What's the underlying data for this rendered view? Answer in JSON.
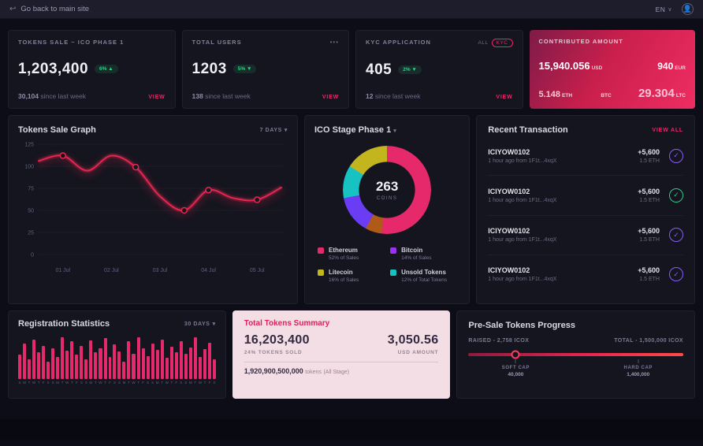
{
  "icons": {
    "back": "↩",
    "caret": "▾",
    "dots": "•••",
    "check": "✓",
    "user": "👤",
    "lang_caret": "∨"
  },
  "colors": {
    "accent_pink": "#e6296b",
    "line_red": "#e6264f",
    "badge_green": "#2dd284",
    "purple": "#8a5cf6",
    "teal": "#17c2c2"
  },
  "topbar": {
    "back_label": "Go back to main site",
    "lang": "EN"
  },
  "stat_cards": [
    {
      "title": "TOKENS SALE ~ ICO PHASE 1",
      "value": "1,203,400",
      "badge": "6% ▲",
      "sub_value": "30,104",
      "sub_label": "since last week",
      "link": "VIEW"
    },
    {
      "title": "TOTAL USERS",
      "value": "1203",
      "badge": "5% ▼",
      "sub_value": "138",
      "sub_label": "since last week",
      "link": "VIEW"
    },
    {
      "title": "KYC APPLICATION",
      "value": "405",
      "badge": "2% ▼",
      "sub_value": "12",
      "sub_label": "since last week",
      "link": "VIEW",
      "toggles": [
        "ALL",
        "KYC"
      ]
    }
  ],
  "contrib": {
    "title": "CONTRIBUTED AMOUNT",
    "usd_value": "15,940.056",
    "usd_unit": "USD",
    "eur_value": "940",
    "eur_unit": "EUR",
    "eth_value": "5.148",
    "eth_unit": "ETH",
    "btc_value": "",
    "btc_unit": "BTC",
    "ltc_value": "29.304",
    "ltc_unit": "LTC"
  },
  "tokens_sale_graph": {
    "title": "Tokens Sale Graph",
    "range": "7 DAYS",
    "chart_data": {
      "type": "line",
      "x_labels": [
        "01 Jul",
        "02 Jul",
        "03 Jul",
        "04 Jul",
        "05 Jul"
      ],
      "values": [
        106,
        112,
        95,
        112,
        99,
        66,
        50,
        73,
        64,
        62,
        76
      ],
      "marker_indices": [
        1,
        4,
        6,
        7,
        9
      ],
      "ylim": [
        0,
        125
      ],
      "yticks": [
        0,
        25,
        50,
        75,
        100,
        125
      ],
      "line_color": "#e6264f",
      "grid": false,
      "title": "Tokens Sale Graph"
    }
  },
  "ico_stage": {
    "title": "ICO Stage Phase 1",
    "center_value": "263",
    "center_label": "COINS",
    "legend": [
      {
        "name": "Ethereum",
        "sub": "52% of Sales",
        "color": "#e6296b"
      },
      {
        "name": "Bitcoin",
        "sub": "14% of Sales",
        "color": "#9b2ff2"
      },
      {
        "name": "Litecoin",
        "sub": "16% of Sales",
        "color": "#c2b51e"
      },
      {
        "name": "Unsold Tokens",
        "sub": "12% of Total Tokens",
        "color": "#17c2c2"
      }
    ],
    "chart_data": {
      "type": "pie",
      "title": "ICO Stage Phase 1",
      "center_value": 263,
      "segments": [
        {
          "label": "Ethereum",
          "pct": 52,
          "color": "#e6296b"
        },
        {
          "label": "unlabeled",
          "pct": 6,
          "color": "#b05a1a"
        },
        {
          "label": "Bitcoin",
          "pct": 14,
          "color": "#6a3df5"
        },
        {
          "label": "Unsold Tokens",
          "pct": 12,
          "color": "#17c2c2"
        },
        {
          "label": "Litecoin",
          "pct": 16,
          "color": "#c2b51e"
        }
      ]
    }
  },
  "transactions": {
    "title": "Recent Transaction",
    "link": "VIEW ALL",
    "items": [
      {
        "id": "ICIYOW0102",
        "meta": "1 hour ago from 1F1t...4xqX",
        "amount": "+5,600",
        "eth": "1.5 ETH",
        "icon_color": "#8a5cf6"
      },
      {
        "id": "ICIYOW0102",
        "meta": "1 hour ago from 1F1t...4xqX",
        "amount": "+5,600",
        "eth": "1.5 ETH",
        "icon_color": "#2fc98e"
      },
      {
        "id": "ICIYOW0102",
        "meta": "1 hour ago from 1F1t...4xqX",
        "amount": "+5,600",
        "eth": "1.5 ETH",
        "icon_color": "#8a5cf6"
      },
      {
        "id": "ICIYOW0102",
        "meta": "1 hour ago from 1F1t...4xqX",
        "amount": "+5,600",
        "eth": "1.5 ETH",
        "icon_color": "#8a5cf6"
      }
    ]
  },
  "registration": {
    "title": "Registration Statistics",
    "range": "30 DAYS",
    "chart_data": {
      "type": "bar",
      "title": "Registration Statistics",
      "bar_color": "#e6296b",
      "values": [
        55,
        80,
        45,
        90,
        60,
        75,
        40,
        70,
        50,
        95,
        65,
        85,
        55,
        75,
        45,
        88,
        60,
        70,
        92,
        50,
        78,
        62,
        40,
        85,
        58,
        95,
        70,
        52,
        80,
        66,
        90,
        48,
        74,
        60,
        86,
        58,
        72,
        94,
        50,
        68,
        82,
        44
      ],
      "labels": [
        "S",
        "M",
        "T",
        "W",
        "T",
        "F",
        "S",
        "S",
        "M",
        "T",
        "W",
        "T",
        "F",
        "S",
        "S",
        "M",
        "T",
        "W",
        "T",
        "F",
        "S",
        "S",
        "M",
        "T",
        "W",
        "T",
        "F",
        "S",
        "S",
        "M",
        "T",
        "W",
        "T",
        "F",
        "S",
        "S",
        "M",
        "T",
        "W",
        "T",
        "F",
        "S"
      ]
    }
  },
  "summary": {
    "title": "Total Tokens Summary",
    "tokens_value": "16,203,400",
    "tokens_sub": "24% TOKENS SOLD",
    "usd_value": "3,050.56",
    "usd_sub": "USD AMOUNT",
    "total_value": "1,920,900,500,000",
    "total_unit": "tokens",
    "total_suffix": "(All Stage)"
  },
  "presale": {
    "title": "Pre-Sale Tokens Progress",
    "raised": "RAISED  -  2,758 ICOX",
    "total": "TOTAL  -  1,500,000 ICOX",
    "knob_pct": 22,
    "soft_pct": 22,
    "hard_pct": 79,
    "soft_cap_label": "SOFT CAP",
    "soft_cap_value": "40,000",
    "hard_cap_label": "HARD CAP",
    "hard_cap_value": "1,400,000"
  }
}
